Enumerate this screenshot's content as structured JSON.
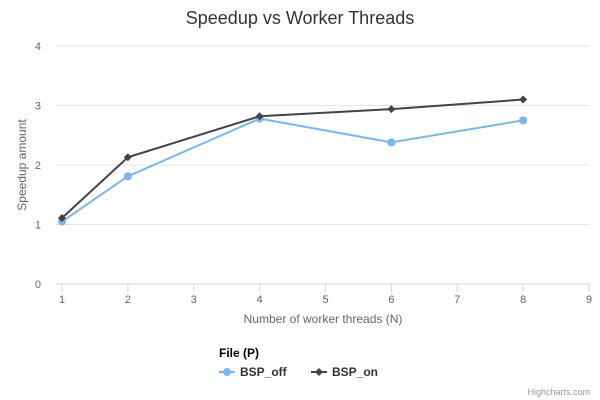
{
  "chart_data": {
    "type": "line",
    "title": "Speedup vs Worker Threads",
    "xlabel": "Number of worker threads (N)",
    "ylabel": "Speedup amount",
    "xlim": [
      1,
      9
    ],
    "ylim": [
      0,
      4
    ],
    "xticks": [
      1,
      2,
      3,
      4,
      5,
      6,
      7,
      8,
      9
    ],
    "yticks": [
      0,
      1,
      2,
      3,
      4
    ],
    "grid": true,
    "legend": {
      "title": "File (P)",
      "position": "bottom-center"
    },
    "series": [
      {
        "name": "BSP_off",
        "color": "#7cb5ec",
        "marker": "circle",
        "points": [
          {
            "x": 1,
            "y": 1.05
          },
          {
            "x": 2,
            "y": 1.81
          },
          {
            "x": 4,
            "y": 2.78
          },
          {
            "x": 6,
            "y": 2.38
          },
          {
            "x": 8,
            "y": 2.75
          }
        ]
      },
      {
        "name": "BSP_on",
        "color": "#434348",
        "marker": "diamond",
        "points": [
          {
            "x": 1,
            "y": 1.11
          },
          {
            "x": 2,
            "y": 2.13
          },
          {
            "x": 4,
            "y": 2.82
          },
          {
            "x": 6,
            "y": 2.94
          },
          {
            "x": 8,
            "y": 3.1
          }
        ]
      }
    ]
  },
  "credits": "Highcharts.com"
}
